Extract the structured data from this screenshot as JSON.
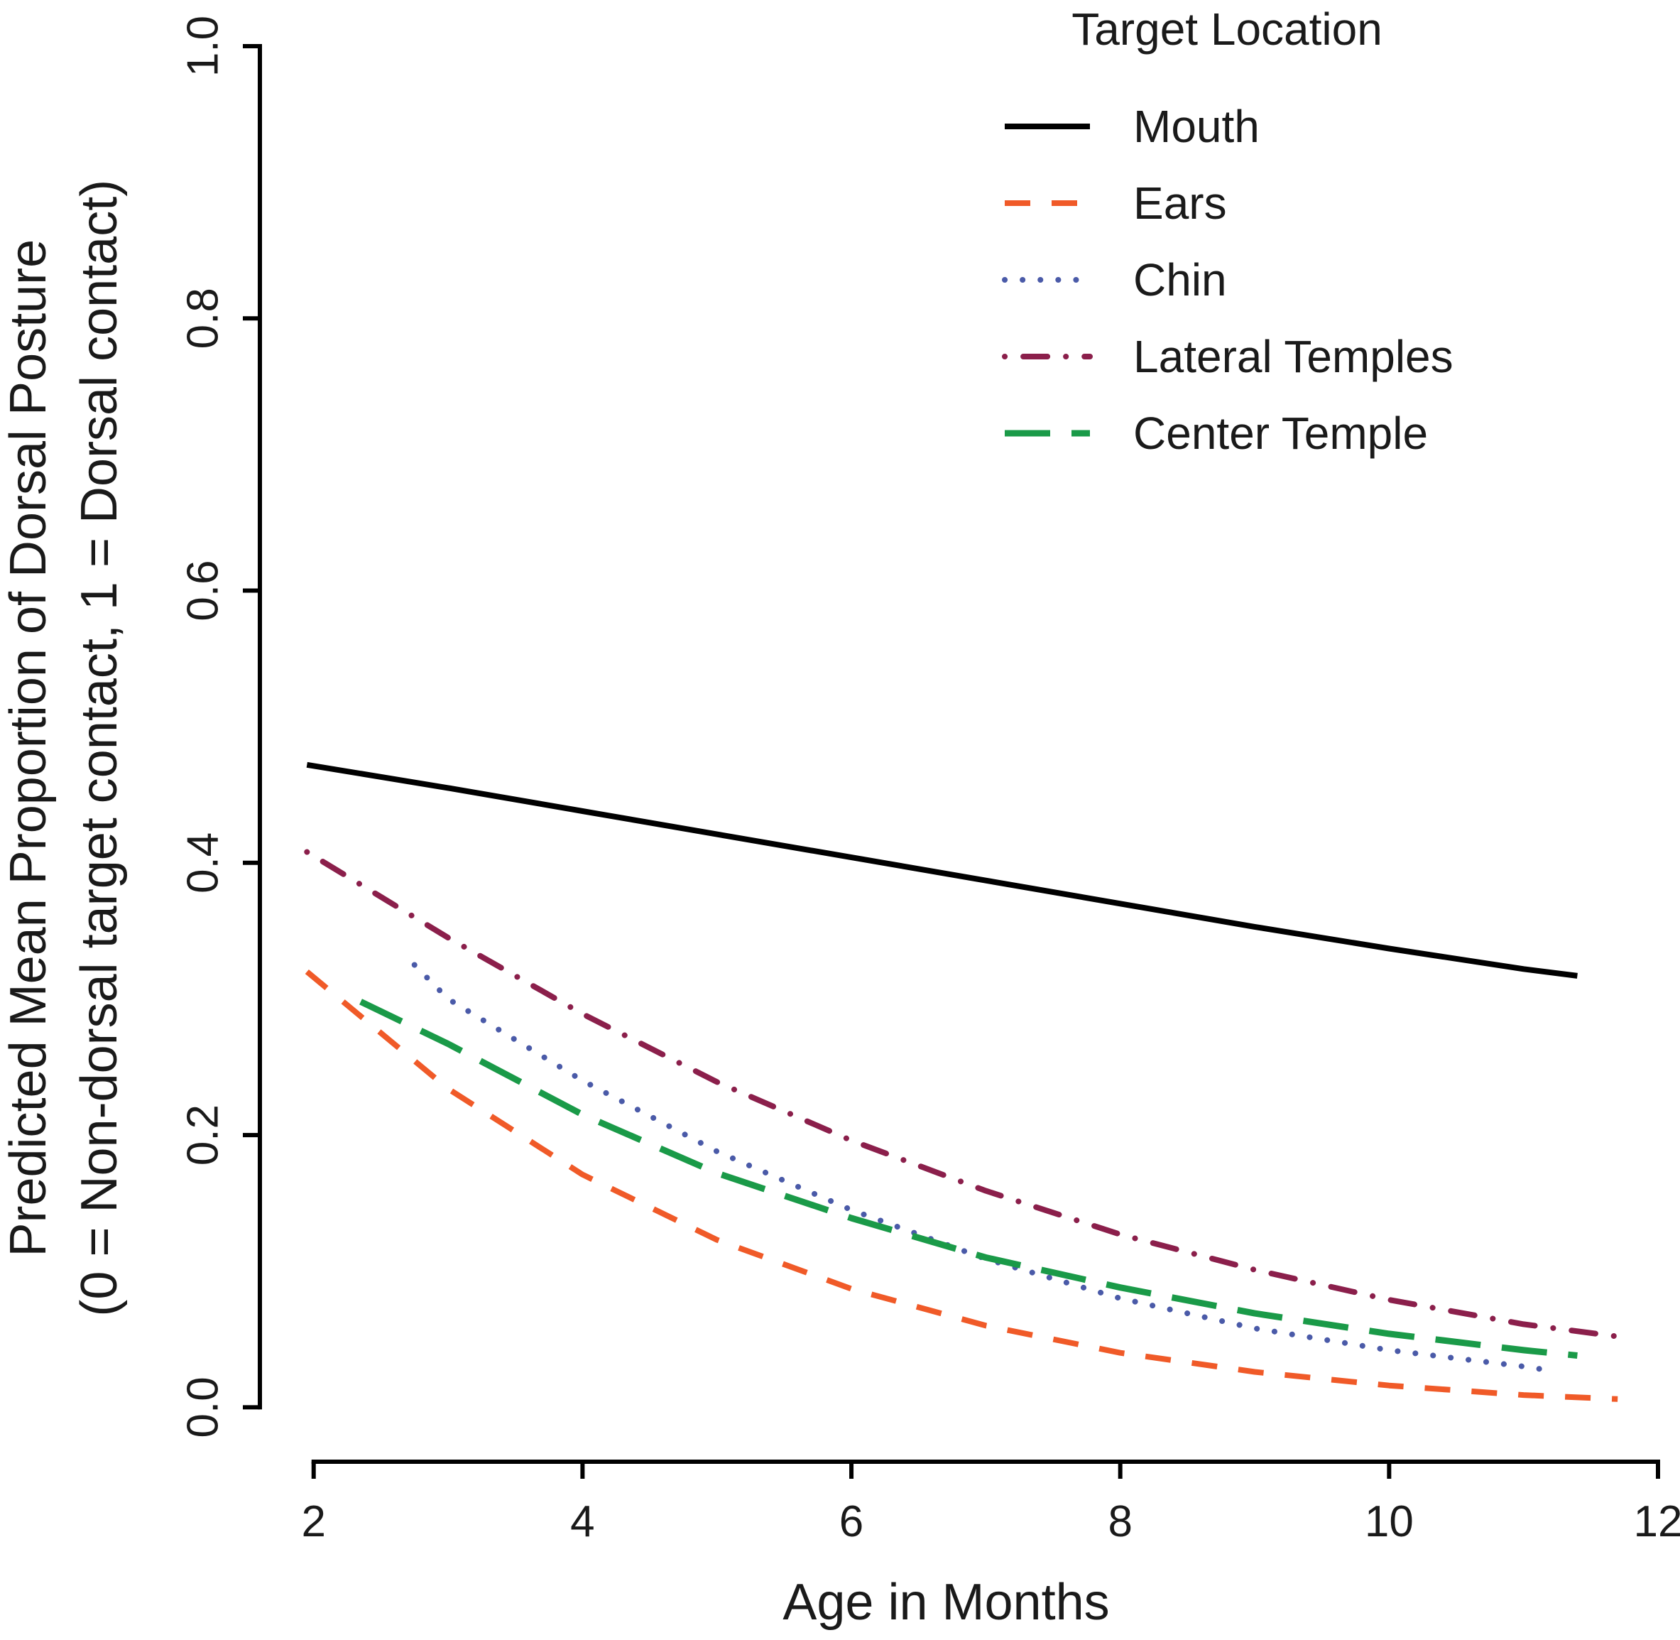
{
  "chart_data": {
    "type": "line",
    "title": "",
    "xlabel": "Age in Months",
    "ylabel": "Predicted Mean Proportion of Dorsal Posture",
    "ylabel2": "(0 = Non-dorsal target contact, 1 = Dorsal contact)",
    "xlim": [
      1.6,
      12.0
    ],
    "ylim": [
      -0.04,
      1.0
    ],
    "xticks": [
      2,
      4,
      6,
      8,
      10,
      12
    ],
    "xtick_labels": [
      "2",
      "4",
      "6",
      "8",
      "10",
      "12"
    ],
    "yticks": [
      0.0,
      0.2,
      0.4,
      0.6,
      0.8,
      1.0
    ],
    "ytick_labels": [
      "0.0",
      "0.2",
      "0.4",
      "0.6",
      "0.8",
      "1.0"
    ],
    "grid": false,
    "legend": {
      "title": "Target Location",
      "placement": "top-right"
    },
    "series": [
      {
        "name": "Mouth",
        "color": "#000000",
        "style": "solid",
        "x": [
          1.95,
          3,
          4,
          5,
          6,
          7,
          8,
          9,
          10,
          11,
          11.4
        ],
        "y": [
          0.472,
          0.455,
          0.438,
          0.421,
          0.404,
          0.387,
          0.37,
          0.353,
          0.337,
          0.322,
          0.317
        ]
      },
      {
        "name": "Ears",
        "color": "#f05a28",
        "style": "dashed",
        "x": [
          1.95,
          3,
          4,
          5,
          6,
          7,
          8,
          9,
          10,
          11,
          11.7
        ],
        "y": [
          0.32,
          0.234,
          0.171,
          0.123,
          0.087,
          0.06,
          0.04,
          0.026,
          0.016,
          0.009,
          0.006
        ]
      },
      {
        "name": "Chin",
        "color": "#4a5aa8",
        "style": "dotted",
        "x": [
          2.75,
          3,
          4,
          5,
          6,
          7,
          8,
          9,
          10,
          11,
          11.2
        ],
        "y": [
          0.325,
          0.3,
          0.24,
          0.188,
          0.145,
          0.109,
          0.08,
          0.058,
          0.042,
          0.03,
          0.027
        ]
      },
      {
        "name": "Lateral Temples",
        "color": "#8b1f4b",
        "style": "dashdot",
        "x": [
          1.95,
          3,
          4,
          5,
          6,
          7,
          8,
          9,
          10,
          11,
          11.7
        ],
        "y": [
          0.408,
          0.345,
          0.289,
          0.239,
          0.196,
          0.159,
          0.127,
          0.101,
          0.079,
          0.061,
          0.052
        ]
      },
      {
        "name": "Center Temple",
        "color": "#1a9a48",
        "style": "longdash",
        "x": [
          2.35,
          3,
          4,
          5,
          6,
          7,
          8,
          9,
          10,
          11,
          11.4
        ],
        "y": [
          0.298,
          0.267,
          0.215,
          0.172,
          0.139,
          0.11,
          0.088,
          0.069,
          0.054,
          0.042,
          0.038
        ]
      }
    ]
  }
}
